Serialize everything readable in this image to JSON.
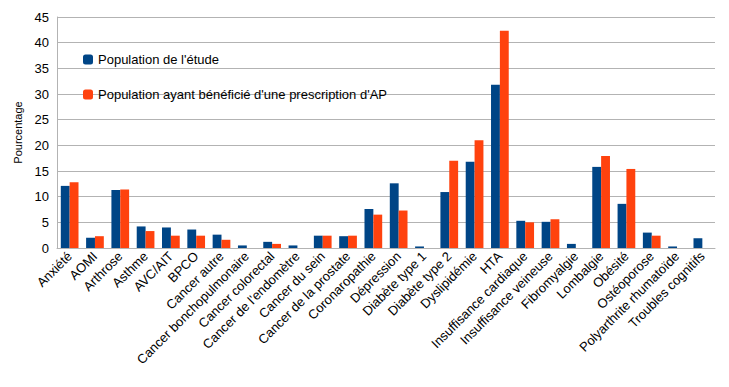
{
  "chart_data": {
    "type": "bar",
    "y_label": "Pourcentage",
    "categories": [
      "Anxiété",
      "AOMI",
      "Arthrose",
      "Asthme",
      "AVC/AIT",
      "BPCO",
      "Cancer autre",
      "Cancer bonchopulmonaire",
      "Cancer colorectal",
      "Cancer de l'endomètre",
      "Cancer du sein",
      "Cancer de la prostate",
      "Coronaropathie",
      "Dépression",
      "Diabète type 1",
      "Diabète type 2",
      "Dyslipidémie",
      "HTA",
      "Insuffisance cardiaque",
      "Insuffisance veineuse",
      "Fibromyalgie",
      "Lombalgie",
      "Obésité",
      "Ostéoporose",
      "Polyarthrite rhumatoïde",
      "Troubles cognitifs"
    ],
    "series": [
      {
        "name": "Population de l'étude",
        "color": "#004586",
        "values": [
          12.1,
          2.0,
          11.3,
          4.2,
          4.0,
          3.6,
          2.6,
          0.5,
          1.2,
          0.5,
          2.4,
          2.3,
          7.6,
          12.6,
          0.3,
          10.9,
          16.8,
          31.8,
          5.3,
          5.1,
          0.8,
          15.8,
          8.6,
          3.0,
          0.3,
          1.9
        ]
      },
      {
        "name": "Population ayant bénéficié d'une prescription d'AP",
        "color": "#ff420e",
        "values": [
          12.8,
          2.3,
          11.4,
          3.3,
          2.4,
          2.4,
          1.6,
          0,
          0.8,
          0,
          2.4,
          2.4,
          6.5,
          7.3,
          0,
          17.0,
          21.0,
          42.3,
          5.0,
          5.6,
          0,
          17.9,
          15.4,
          2.4,
          0,
          0
        ]
      }
    ],
    "ylim": [
      0,
      45
    ],
    "yticks": [
      0,
      5,
      10,
      15,
      20,
      25,
      30,
      35,
      40,
      45
    ],
    "grid": true,
    "legend": "upper left"
  }
}
